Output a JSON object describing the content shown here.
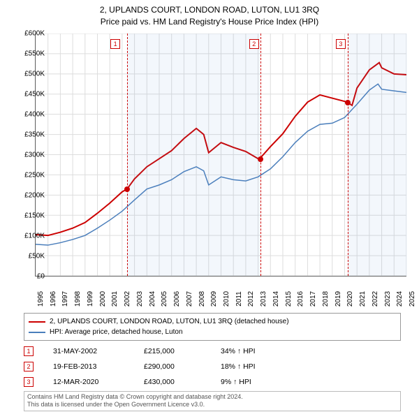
{
  "titles": {
    "line1": "2, UPLANDS COURT, LONDON ROAD, LUTON, LU1 3RQ",
    "line2": "Price paid vs. HM Land Registry's House Price Index (HPI)"
  },
  "chart": {
    "type": "line",
    "x_range": [
      1995,
      2025
    ],
    "y_range": [
      0,
      600000
    ],
    "y_ticks": [
      0,
      50000,
      100000,
      150000,
      200000,
      250000,
      300000,
      350000,
      400000,
      450000,
      500000,
      550000,
      600000
    ],
    "y_tick_labels": [
      "£0",
      "£50K",
      "£100K",
      "£150K",
      "£200K",
      "£250K",
      "£300K",
      "£350K",
      "£400K",
      "£450K",
      "£500K",
      "£550K",
      "£600K"
    ],
    "x_ticks": [
      1995,
      1996,
      1997,
      1998,
      1999,
      2000,
      2001,
      2002,
      2003,
      2004,
      2005,
      2006,
      2007,
      2008,
      2009,
      2010,
      2011,
      2012,
      2013,
      2014,
      2015,
      2016,
      2017,
      2018,
      2019,
      2020,
      2021,
      2022,
      2023,
      2024,
      2025
    ],
    "grid_color": "#dddddd",
    "background_color": "#ffffff",
    "shade_periods": [
      [
        2002.4,
        2013.13
      ],
      [
        2020.2,
        2025
      ]
    ],
    "shade_color": "rgba(100,150,220,0.08)",
    "series": [
      {
        "name": "subject",
        "label": "2, UPLANDS COURT, LONDON ROAD, LUTON, LU1 3RQ (detached house)",
        "color": "#cc0000",
        "line_width": 2,
        "points": [
          [
            1995,
            102000
          ],
          [
            1996,
            100000
          ],
          [
            1997,
            108000
          ],
          [
            1998,
            118000
          ],
          [
            1999,
            132000
          ],
          [
            2000,
            155000
          ],
          [
            2001,
            180000
          ],
          [
            2002,
            208000
          ],
          [
            2002.4,
            215000
          ],
          [
            2003,
            240000
          ],
          [
            2004,
            270000
          ],
          [
            2005,
            290000
          ],
          [
            2006,
            310000
          ],
          [
            2007,
            340000
          ],
          [
            2008,
            365000
          ],
          [
            2008.6,
            350000
          ],
          [
            2009,
            305000
          ],
          [
            2010,
            330000
          ],
          [
            2011,
            318000
          ],
          [
            2012,
            308000
          ],
          [
            2013,
            290000
          ],
          [
            2013.13,
            290000
          ],
          [
            2014,
            320000
          ],
          [
            2015,
            352000
          ],
          [
            2016,
            395000
          ],
          [
            2017,
            430000
          ],
          [
            2018,
            448000
          ],
          [
            2019,
            440000
          ],
          [
            2020,
            432000
          ],
          [
            2020.2,
            430000
          ],
          [
            2020.6,
            422000
          ],
          [
            2021,
            465000
          ],
          [
            2022,
            510000
          ],
          [
            2022.8,
            528000
          ],
          [
            2023,
            515000
          ],
          [
            2024,
            500000
          ],
          [
            2025,
            498000
          ]
        ]
      },
      {
        "name": "hpi",
        "label": "HPI: Average price, detached house, Luton",
        "color": "#4a7ebb",
        "line_width": 1.5,
        "points": [
          [
            1995,
            78000
          ],
          [
            1996,
            76000
          ],
          [
            1997,
            82000
          ],
          [
            1998,
            90000
          ],
          [
            1999,
            100000
          ],
          [
            2000,
            118000
          ],
          [
            2001,
            138000
          ],
          [
            2002,
            160000
          ],
          [
            2003,
            188000
          ],
          [
            2004,
            215000
          ],
          [
            2005,
            225000
          ],
          [
            2006,
            238000
          ],
          [
            2007,
            258000
          ],
          [
            2008,
            270000
          ],
          [
            2008.6,
            260000
          ],
          [
            2009,
            225000
          ],
          [
            2010,
            245000
          ],
          [
            2011,
            238000
          ],
          [
            2012,
            235000
          ],
          [
            2013,
            245000
          ],
          [
            2014,
            265000
          ],
          [
            2015,
            295000
          ],
          [
            2016,
            330000
          ],
          [
            2017,
            358000
          ],
          [
            2018,
            375000
          ],
          [
            2019,
            378000
          ],
          [
            2020,
            392000
          ],
          [
            2021,
            425000
          ],
          [
            2022,
            460000
          ],
          [
            2022.7,
            475000
          ],
          [
            2023,
            462000
          ],
          [
            2024,
            458000
          ],
          [
            2025,
            454000
          ]
        ]
      }
    ],
    "sale_markers": [
      {
        "n": "1",
        "x": 2002.4,
        "y": 215000,
        "box_x": 2001.1,
        "box_y": 0
      },
      {
        "n": "2",
        "x": 2013.13,
        "y": 290000,
        "box_x": 2012.3,
        "box_y": 0
      },
      {
        "n": "3",
        "x": 2020.2,
        "y": 430000,
        "box_x": 2019.3,
        "box_y": 0
      }
    ]
  },
  "legend": {
    "items": [
      {
        "color": "#cc0000",
        "label": "2, UPLANDS COURT, LONDON ROAD, LUTON, LU1 3RQ (detached house)"
      },
      {
        "color": "#4a7ebb",
        "label": "HPI: Average price, detached house, Luton"
      }
    ]
  },
  "sales": [
    {
      "n": "1",
      "date": "31-MAY-2002",
      "price": "£215,000",
      "pct": "34% ↑ HPI"
    },
    {
      "n": "2",
      "date": "19-FEB-2013",
      "price": "£290,000",
      "pct": "18% ↑ HPI"
    },
    {
      "n": "3",
      "date": "12-MAR-2020",
      "price": "£430,000",
      "pct": "9% ↑ HPI"
    }
  ],
  "footer": {
    "line1": "Contains HM Land Registry data © Crown copyright and database right 2024.",
    "line2": "This data is licensed under the Open Government Licence v3.0."
  }
}
